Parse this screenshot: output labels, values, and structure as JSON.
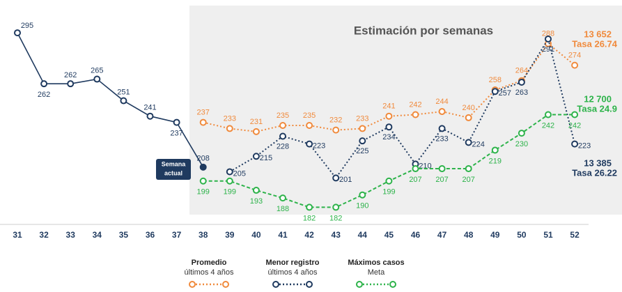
{
  "chart_data": {
    "type": "line",
    "title": "Estimación por semanas",
    "categories": [
      "31",
      "32",
      "33",
      "34",
      "35",
      "36",
      "37",
      "38",
      "39",
      "40",
      "41",
      "42",
      "43",
      "44",
      "45",
      "46",
      "47",
      "48",
      "49",
      "50",
      "51",
      "52"
    ],
    "ylim": [
      170,
      300
    ],
    "series": [
      {
        "name": "Semana actual",
        "color": "#1f3a5f",
        "style": "solid",
        "values": [
          295,
          262,
          262,
          265,
          251,
          241,
          237,
          208,
          null,
          null,
          null,
          null,
          null,
          null,
          null,
          null,
          null,
          null,
          null,
          null,
          null,
          null
        ]
      },
      {
        "name": "Promedio",
        "subtitle": "últimos 4 años",
        "color": "#f08a3c",
        "style": "dotted",
        "values": [
          null,
          null,
          null,
          null,
          null,
          null,
          null,
          237,
          233,
          231,
          235,
          235,
          232,
          233,
          241,
          242,
          244,
          240,
          258,
          264,
          288,
          274
        ]
      },
      {
        "name": "Menor registro",
        "subtitle": "últimos 4 años",
        "color": "#1f3a5f",
        "style": "dotted",
        "values": [
          null,
          null,
          null,
          null,
          null,
          null,
          null,
          null,
          205,
          215,
          228,
          223,
          201,
          225,
          234,
          210,
          233,
          224,
          257,
          263,
          291,
          223
        ]
      },
      {
        "name": "Máximos casos",
        "subtitle": "Meta",
        "color": "#2db34a",
        "style": "dashed",
        "values": [
          null,
          null,
          null,
          null,
          null,
          null,
          null,
          199,
          199,
          193,
          188,
          182,
          182,
          190,
          199,
          207,
          207,
          207,
          219,
          230,
          242,
          242
        ]
      }
    ],
    "annotations": [
      {
        "total": "13 652",
        "rate": "Tasa 26.74",
        "color": "#f08a3c"
      },
      {
        "total": "12 700",
        "rate": "Tasa 24.9",
        "color": "#2db34a"
      },
      {
        "total": "13 385",
        "rate": "Tasa 26.22",
        "color": "#1f3a5f"
      }
    ]
  }
}
